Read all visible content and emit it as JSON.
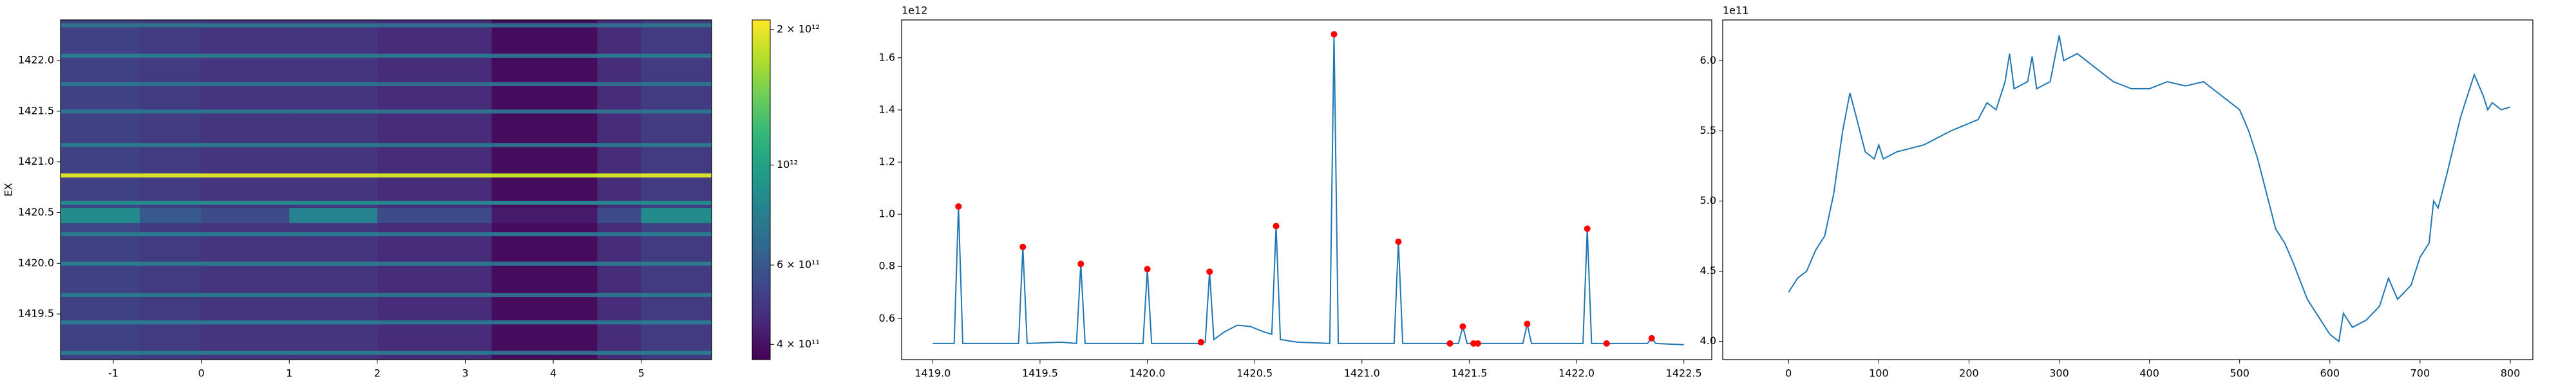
{
  "chart_data": [
    {
      "type": "heatmap",
      "y_label": "EX",
      "x_edges": [
        -1.6,
        -0.7,
        0,
        1,
        2,
        3.3,
        4.5,
        5.0,
        5.8
      ],
      "y_edges": [
        1419.05,
        1419.1,
        1419.14,
        1419.4,
        1419.44,
        1419.67,
        1419.71,
        1419.98,
        1420.02,
        1420.27,
        1420.31,
        1420.4,
        1420.55,
        1420.58,
        1420.62,
        1420.85,
        1420.89,
        1421.15,
        1421.19,
        1421.48,
        1421.52,
        1421.75,
        1421.79,
        1422.03,
        1422.07,
        1422.33,
        1422.37,
        1422.4
      ],
      "z": [
        [
          520000000000.0,
          500000000000.0,
          480000000000.0,
          480000000000.0,
          460000000000.0,
          390000000000.0,
          460000000000.0,
          500000000000.0
        ],
        [
          750000000000.0,
          750000000000.0,
          750000000000.0,
          750000000000.0,
          730000000000.0,
          700000000000.0,
          730000000000.0,
          750000000000.0
        ],
        [
          520000000000.0,
          500000000000.0,
          480000000000.0,
          480000000000.0,
          460000000000.0,
          390000000000.0,
          460000000000.0,
          500000000000.0
        ],
        [
          750000000000.0,
          750000000000.0,
          750000000000.0,
          750000000000.0,
          730000000000.0,
          700000000000.0,
          730000000000.0,
          750000000000.0
        ],
        [
          520000000000.0,
          500000000000.0,
          480000000000.0,
          480000000000.0,
          460000000000.0,
          390000000000.0,
          460000000000.0,
          500000000000.0
        ],
        [
          750000000000.0,
          750000000000.0,
          750000000000.0,
          750000000000.0,
          730000000000.0,
          700000000000.0,
          730000000000.0,
          750000000000.0
        ],
        [
          520000000000.0,
          500000000000.0,
          480000000000.0,
          480000000000.0,
          460000000000.0,
          390000000000.0,
          460000000000.0,
          500000000000.0
        ],
        [
          750000000000.0,
          750000000000.0,
          750000000000.0,
          750000000000.0,
          730000000000.0,
          700000000000.0,
          730000000000.0,
          750000000000.0
        ],
        [
          520000000000.0,
          500000000000.0,
          480000000000.0,
          480000000000.0,
          460000000000.0,
          390000000000.0,
          460000000000.0,
          500000000000.0
        ],
        [
          750000000000.0,
          750000000000.0,
          750000000000.0,
          750000000000.0,
          730000000000.0,
          700000000000.0,
          730000000000.0,
          750000000000.0
        ],
        [
          540000000000.0,
          500000000000.0,
          480000000000.0,
          490000000000.0,
          460000000000.0,
          390000000000.0,
          460000000000.0,
          520000000000.0
        ],
        [
          850000000000.0,
          600000000000.0,
          550000000000.0,
          800000000000.0,
          550000000000.0,
          420000000000.0,
          550000000000.0,
          850000000000.0
        ],
        [
          540000000000.0,
          500000000000.0,
          480000000000.0,
          490000000000.0,
          460000000000.0,
          390000000000.0,
          460000000000.0,
          520000000000.0
        ],
        [
          850000000000.0,
          850000000000.0,
          850000000000.0,
          850000000000.0,
          830000000000.0,
          800000000000.0,
          830000000000.0,
          850000000000.0
        ],
        [
          520000000000.0,
          500000000000.0,
          480000000000.0,
          480000000000.0,
          460000000000.0,
          390000000000.0,
          460000000000.0,
          500000000000.0
        ],
        [
          1900000000000.0,
          1900000000000.0,
          1900000000000.0,
          1900000000000.0,
          1850000000000.0,
          1800000000000.0,
          1850000000000.0,
          1900000000000.0
        ],
        [
          520000000000.0,
          500000000000.0,
          480000000000.0,
          480000000000.0,
          460000000000.0,
          390000000000.0,
          460000000000.0,
          500000000000.0
        ],
        [
          750000000000.0,
          750000000000.0,
          750000000000.0,
          750000000000.0,
          730000000000.0,
          700000000000.0,
          730000000000.0,
          750000000000.0
        ],
        [
          520000000000.0,
          500000000000.0,
          480000000000.0,
          480000000000.0,
          460000000000.0,
          390000000000.0,
          460000000000.0,
          500000000000.0
        ],
        [
          720000000000.0,
          720000000000.0,
          720000000000.0,
          720000000000.0,
          700000000000.0,
          680000000000.0,
          700000000000.0,
          720000000000.0
        ],
        [
          520000000000.0,
          500000000000.0,
          480000000000.0,
          480000000000.0,
          460000000000.0,
          390000000000.0,
          460000000000.0,
          500000000000.0
        ],
        [
          720000000000.0,
          720000000000.0,
          720000000000.0,
          720000000000.0,
          700000000000.0,
          680000000000.0,
          700000000000.0,
          720000000000.0
        ],
        [
          520000000000.0,
          500000000000.0,
          480000000000.0,
          480000000000.0,
          460000000000.0,
          390000000000.0,
          460000000000.0,
          500000000000.0
        ],
        [
          750000000000.0,
          750000000000.0,
          750000000000.0,
          750000000000.0,
          730000000000.0,
          700000000000.0,
          730000000000.0,
          750000000000.0
        ],
        [
          520000000000.0,
          500000000000.0,
          480000000000.0,
          480000000000.0,
          460000000000.0,
          390000000000.0,
          460000000000.0,
          500000000000.0
        ],
        [
          700000000000.0,
          700000000000.0,
          700000000000.0,
          700000000000.0,
          680000000000.0,
          660000000000.0,
          680000000000.0,
          700000000000.0
        ],
        [
          520000000000.0,
          500000000000.0,
          480000000000.0,
          480000000000.0,
          460000000000.0,
          390000000000.0,
          460000000000.0,
          500000000000.0
        ]
      ],
      "xlim": [
        -1.6,
        5.8
      ],
      "ylim": [
        1419.05,
        1422.4
      ],
      "xticks": [
        -1,
        0,
        1,
        2,
        3,
        4,
        5
      ],
      "yticks": [
        1419.5,
        {
          "value": 1420,
          "label": "1420.0"
        },
        1420.5,
        {
          "value": 1421,
          "label": "1421.0"
        },
        1421.5,
        {
          "value": 1422,
          "label": "1422.0"
        }
      ],
      "colorscale": "viridis",
      "zscale": "log",
      "zlim": [
        370000000000.0,
        2100000000000.0
      ],
      "zticks": [
        {
          "value": 400000000000.0,
          "label": "4 × 10¹¹"
        },
        {
          "value": 600000000000.0,
          "label": "6 × 10¹¹"
        },
        {
          "value": 1000000000000.0,
          "label": "10¹²"
        },
        {
          "value": 2000000000000.0,
          "label": "2 × 10¹²"
        }
      ]
    },
    {
      "type": "line",
      "y_offset_label": "1e12",
      "xlim": [
        1418.855,
        1422.63
      ],
      "ylim": [
        0.443,
        1.745
      ],
      "xticks": [
        {
          "value": 1419,
          "label": "1419.0"
        },
        1419.5,
        {
          "value": 1420,
          "label": "1420.0"
        },
        1420.5,
        {
          "value": 1421,
          "label": "1421.0"
        },
        1421.5,
        {
          "value": 1422,
          "label": "1422.0"
        },
        1422.5
      ],
      "yticks": [
        0.6,
        0.8,
        {
          "value": 1,
          "label": "1.0"
        },
        1.2,
        1.4,
        1.6
      ],
      "series": [
        {
          "type": "line",
          "color": "#1f77b4",
          "x": [
            1419.0,
            1419.1,
            1419.12,
            1419.14,
            1419.4,
            1419.42,
            1419.44,
            1419.6,
            1419.67,
            1419.69,
            1419.71,
            1419.98,
            1420.0,
            1420.02,
            1420.24,
            1420.27,
            1420.29,
            1420.31,
            1420.36,
            1420.42,
            1420.48,
            1420.54,
            1420.58,
            1420.6,
            1420.62,
            1420.7,
            1420.85,
            1420.87,
            1420.89,
            1421.15,
            1421.17,
            1421.19,
            1421.45,
            1421.47,
            1421.49,
            1421.75,
            1421.77,
            1421.79,
            1422.03,
            1422.05,
            1422.07,
            1422.33,
            1422.35,
            1422.37,
            1422.5
          ],
          "values": [
            0.505,
            0.505,
            1.03,
            0.505,
            0.505,
            0.875,
            0.505,
            0.51,
            0.505,
            0.81,
            0.505,
            0.505,
            0.79,
            0.505,
            0.505,
            0.51,
            0.78,
            0.52,
            0.55,
            0.575,
            0.57,
            0.55,
            0.54,
            0.955,
            0.52,
            0.51,
            0.505,
            1.69,
            0.505,
            0.505,
            0.895,
            0.505,
            0.505,
            0.57,
            0.505,
            0.505,
            0.58,
            0.505,
            0.505,
            0.945,
            0.505,
            0.505,
            0.525,
            0.505,
            0.5
          ]
        },
        {
          "type": "scatter",
          "color": "#ff0000",
          "x": [
            1419.12,
            1419.42,
            1419.69,
            1420.0,
            1420.25,
            1420.29,
            1420.6,
            1420.87,
            1421.17,
            1421.41,
            1421.47,
            1421.52,
            1421.54,
            1421.77,
            1422.05,
            1422.14,
            1422.35
          ],
          "values": [
            1.03,
            0.875,
            0.81,
            0.79,
            0.51,
            0.78,
            0.955,
            1.69,
            0.895,
            0.505,
            0.57,
            0.505,
            0.505,
            0.58,
            0.945,
            0.505,
            0.525
          ]
        }
      ]
    },
    {
      "type": "line",
      "y_offset_label": "1e11",
      "xlim": [
        -73,
        825
      ],
      "ylim": [
        3.87,
        6.29
      ],
      "xticks": [
        0,
        100,
        200,
        300,
        400,
        500,
        600,
        700,
        800
      ],
      "yticks": [
        {
          "value": 4,
          "label": "4.0"
        },
        4.5,
        {
          "value": 5,
          "label": "5.0"
        },
        5.5,
        {
          "value": 6,
          "label": "6.0"
        }
      ],
      "series": [
        {
          "type": "line",
          "color": "#1f77b4",
          "x": [
            0,
            10,
            20,
            30,
            40,
            50,
            60,
            68,
            75,
            85,
            95,
            100,
            105,
            120,
            150,
            180,
            210,
            220,
            230,
            240,
            245,
            250,
            265,
            270,
            275,
            290,
            300,
            305,
            320,
            340,
            360,
            380,
            400,
            420,
            440,
            460,
            480,
            500,
            510,
            520,
            530,
            540,
            550,
            560,
            575,
            590,
            600,
            610,
            615,
            625,
            640,
            655,
            665,
            675,
            690,
            700,
            710,
            715,
            720,
            730,
            745,
            760,
            770,
            775,
            780,
            790,
            800
          ],
          "values": [
            4.35,
            4.45,
            4.5,
            4.65,
            4.75,
            5.05,
            5.5,
            5.77,
            5.6,
            5.35,
            5.3,
            5.4,
            5.3,
            5.35,
            5.4,
            5.5,
            5.58,
            5.7,
            5.65,
            5.85,
            6.05,
            5.8,
            5.85,
            6.03,
            5.8,
            5.85,
            6.18,
            6.0,
            6.05,
            5.95,
            5.85,
            5.8,
            5.8,
            5.85,
            5.82,
            5.85,
            5.75,
            5.65,
            5.5,
            5.3,
            5.05,
            4.8,
            4.7,
            4.55,
            4.3,
            4.15,
            4.05,
            4.0,
            4.2,
            4.1,
            4.15,
            4.25,
            4.45,
            4.3,
            4.4,
            4.6,
            4.7,
            5.0,
            4.95,
            5.2,
            5.6,
            5.9,
            5.75,
            5.65,
            5.7,
            5.65,
            5.67
          ]
        }
      ]
    }
  ]
}
